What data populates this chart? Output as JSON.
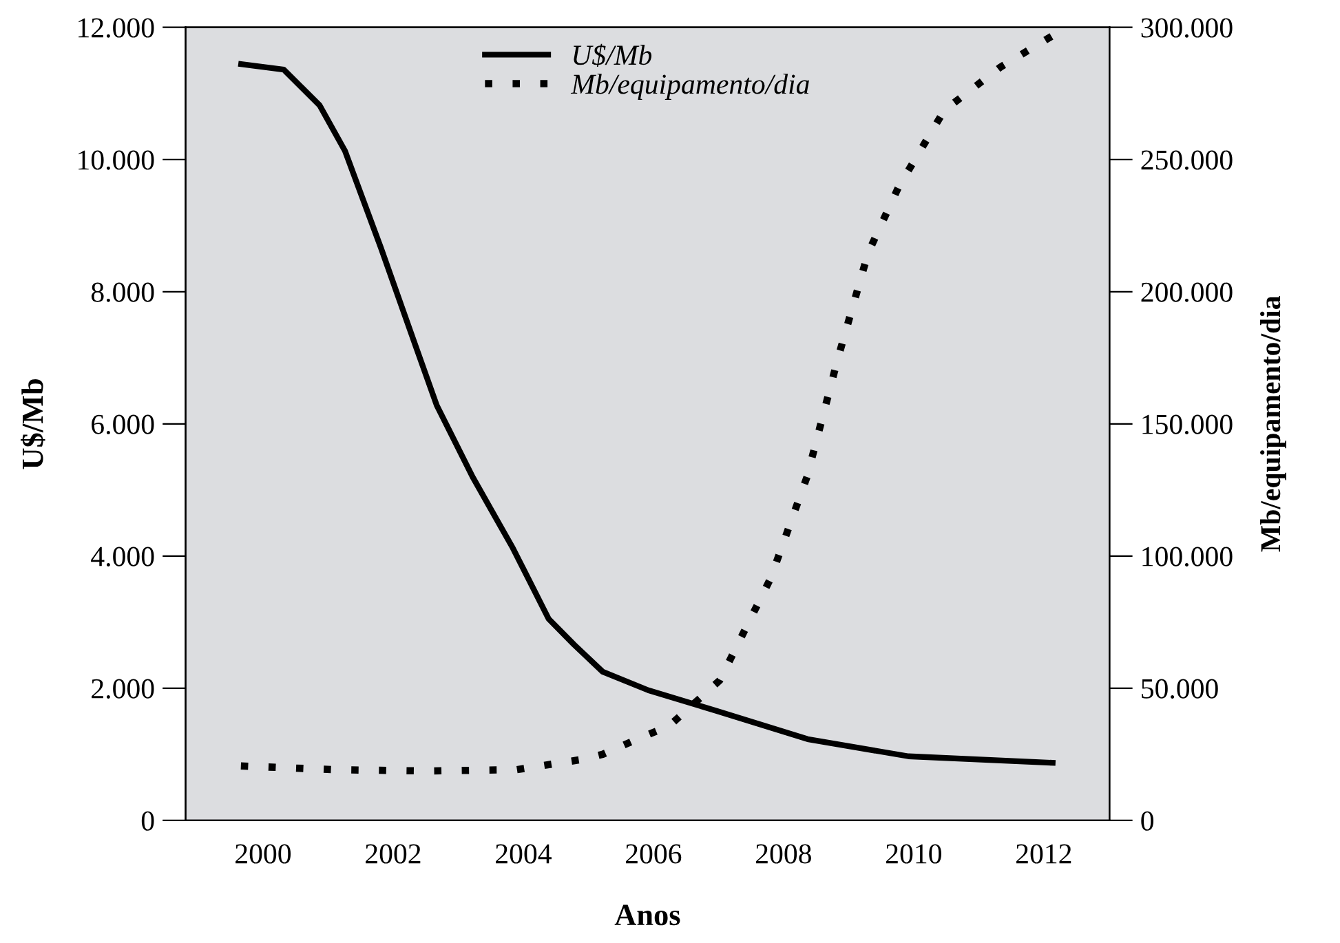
{
  "chart_data": {
    "type": "line",
    "xlabel": "Anos",
    "ylabel": "U$/Mb",
    "y2label": "Mb/equipamento/dia",
    "xlim": [
      1998.81,
      2013.01
    ],
    "xticks": [
      2000,
      2002,
      2004,
      2006,
      2008,
      2010,
      2012
    ],
    "ylim": [
      0,
      12000
    ],
    "yticks": [
      {
        "value": 0,
        "label": "0"
      },
      {
        "value": 2000,
        "label": "2.000"
      },
      {
        "value": 4000,
        "label": "4.000"
      },
      {
        "value": 6000,
        "label": "6.000"
      },
      {
        "value": 8000,
        "label": "8.000"
      },
      {
        "value": 10000,
        "label": "10.000"
      },
      {
        "value": 12000,
        "label": "12.000"
      }
    ],
    "y2lim": [
      0,
      300000
    ],
    "y2ticks": [
      {
        "value": 0,
        "label": "0"
      },
      {
        "value": 50000,
        "label": "50.000"
      },
      {
        "value": 100000,
        "label": "100.000"
      },
      {
        "value": 150000,
        "label": "150.000"
      },
      {
        "value": 200000,
        "label": "200.000"
      },
      {
        "value": 250000,
        "label": "250.000"
      },
      {
        "value": 300000,
        "label": "300.000"
      }
    ],
    "grid": false,
    "legend": "top",
    "series": [
      {
        "name": "U$/Mb",
        "color": "#000000",
        "line_style": "solid",
        "x": [
          1999.62,
          2000.32,
          2000.87,
          2001.26,
          2001.81,
          2002.28,
          2002.67,
          2003.22,
          2003.84,
          2004.39,
          2004.78,
          2005.22,
          2005.92,
          2006.96,
          2008.37,
          2009.92,
          2012.18
        ],
        "values": [
          11450,
          11360,
          10820,
          10130,
          8670,
          7360,
          6280,
          5200,
          4120,
          3050,
          2660,
          2250,
          1970,
          1660,
          1230,
          970,
          870
        ]
      },
      {
        "name": "Mb/equipamento/dia",
        "color": "#000000",
        "line_style": "dotted",
        "axis": "y2",
        "x": [
          1999.66,
          2001.1,
          2002.5,
          2003.9,
          2004.91,
          2005.22,
          2005.85,
          2006.24,
          2007.02,
          2007.8,
          2008.36,
          2008.83,
          2009.3,
          2009.77,
          2010.47,
          2011.33,
          2012.18
        ],
        "values": [
          20600,
          19200,
          18700,
          19200,
          23100,
          25000,
          31800,
          35700,
          53000,
          91500,
          129900,
          174300,
          214700,
          239700,
          268600,
          284900,
          297500
        ]
      }
    ]
  }
}
